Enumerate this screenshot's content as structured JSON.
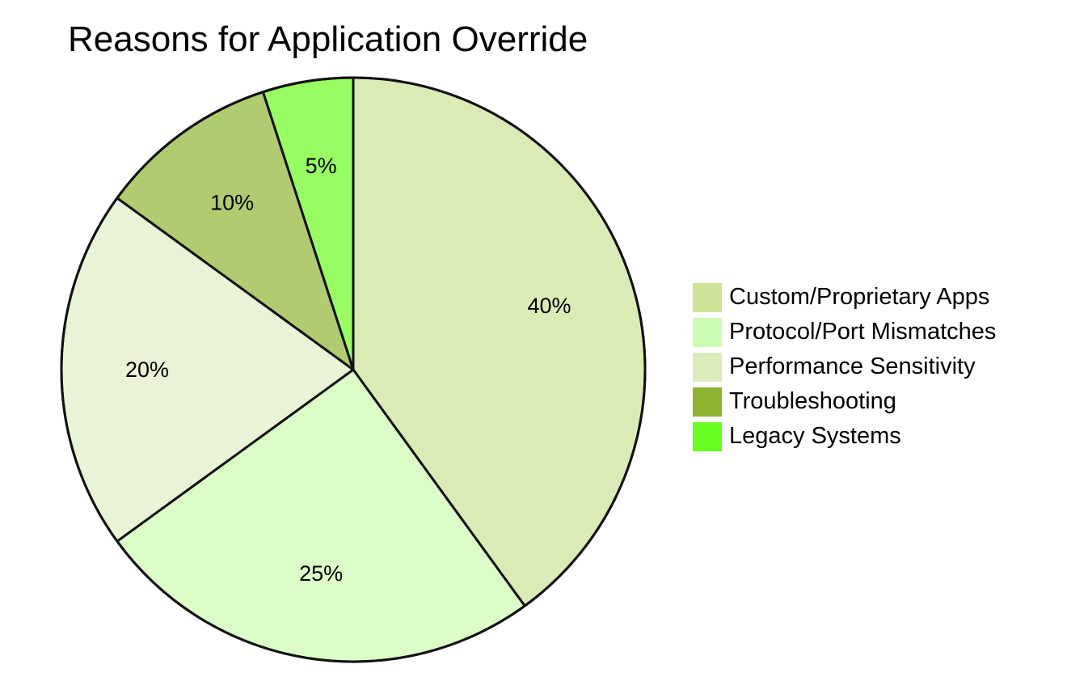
{
  "chart_data": {
    "type": "pie",
    "title": "Reasons for Application Override",
    "categories": [
      "Custom/Proprietary Apps",
      "Protocol/Port Mismatches",
      "Performance Sensitivity",
      "Troubleshooting",
      "Legacy Systems"
    ],
    "values": [
      40,
      25,
      20,
      10,
      5
    ],
    "slice_labels": [
      "40%",
      "25%",
      "20%",
      "10%",
      "5%"
    ],
    "slice_colors": [
      "#dbebb6",
      "#dcfdc8",
      "#e9f3d6",
      "#b1cb70",
      "#98fd62"
    ],
    "legend_colors": [
      "#cee398",
      "#cdfcb4",
      "#dcebba",
      "#8db430",
      "#6afd20"
    ],
    "legend_position": "right",
    "start_angle": "12 o'clock",
    "direction": "clockwise"
  }
}
